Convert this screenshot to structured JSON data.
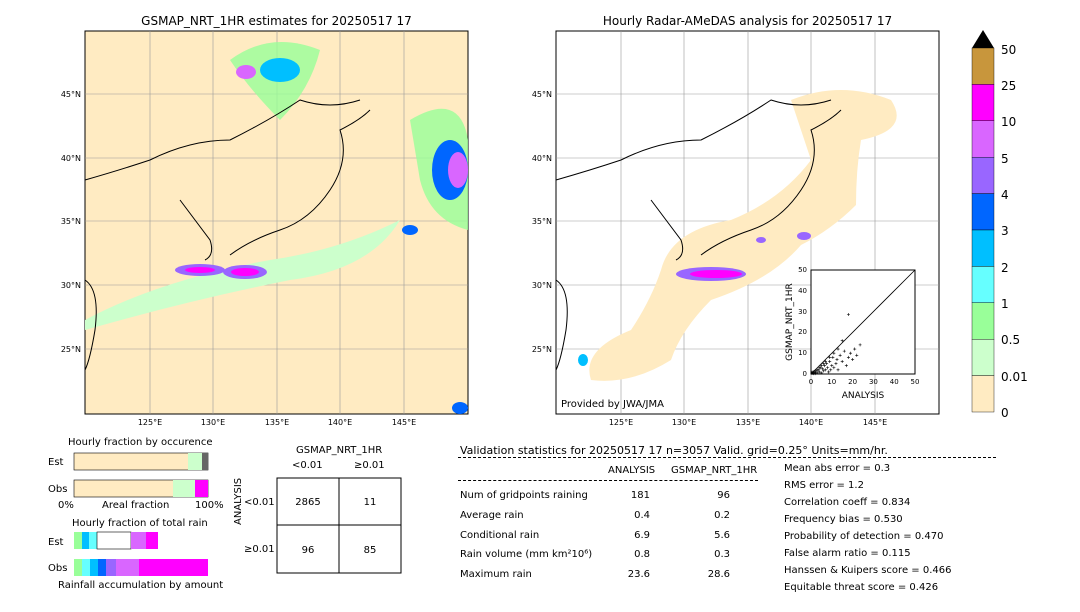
{
  "left_map": {
    "title": "GSMAP_NRT_1HR estimates for 20250517 17",
    "lat_ticks": [
      "45°N",
      "40°N",
      "35°N",
      "30°N",
      "25°N"
    ],
    "lon_ticks": [
      "125°E",
      "130°E",
      "135°E",
      "140°E",
      "145°E"
    ]
  },
  "right_map": {
    "title": "Hourly Radar-AMeDAS analysis for 20250517 17",
    "lat_ticks": [
      "45°N",
      "40°N",
      "35°N",
      "30°N",
      "25°N"
    ],
    "lon_ticks": [
      "125°E",
      "130°E",
      "135°E",
      "140°E",
      "145°E"
    ],
    "credit": "Provided by JWA/JMA"
  },
  "colorbar": {
    "labels": [
      "50",
      "25",
      "10",
      "5",
      "4",
      "3",
      "2",
      "1",
      "0.5",
      "0.01",
      "0"
    ],
    "colors": [
      "#c8963c",
      "#ff00ff",
      "#d966ff",
      "#9966ff",
      "#0066ff",
      "#00bfff",
      "#66ffff",
      "#99ff99",
      "#ccffcc",
      "#ffebc2"
    ]
  },
  "fraction": {
    "occ_title": "Hourly fraction by occurence",
    "est": "Est",
    "obs": "Obs",
    "axis_left": "0%",
    "axis_mid": "Areal fraction",
    "axis_right": "100%",
    "total_title": "Hourly fraction of total rain",
    "accum_label": "Rainfall accumulation by amount"
  },
  "contingency": {
    "title": "GSMAP_NRT_1HR",
    "col_lt": "<0.01",
    "col_ge": "≥0.01",
    "axis": "ANALYSIS",
    "row_lt": "<0.01",
    "row_ge": "≥0.01",
    "a": "2865",
    "b": "11",
    "c": "96",
    "d": "85"
  },
  "stats": {
    "header": "Validation statistics for 20250517 17  n=3057 Valid. grid=0.25° Units=mm/hr.",
    "col_analysis": "ANALYSIS",
    "col_gsmap": "GSMAP_NRT_1HR",
    "rows": [
      {
        "label": "Num of gridpoints raining",
        "analysis": "181",
        "gsmap": "96"
      },
      {
        "label": "Average rain",
        "analysis": "0.4",
        "gsmap": "0.2"
      },
      {
        "label": "Conditional rain",
        "analysis": "6.9",
        "gsmap": "5.6"
      },
      {
        "label": "Rain volume (mm km²10⁶)",
        "analysis": "0.8",
        "gsmap": "0.3"
      },
      {
        "label": "Maximum rain",
        "analysis": "23.6",
        "gsmap": "28.6"
      }
    ],
    "scores": [
      "Mean abs error =    0.3",
      "RMS error =    1.2",
      "Correlation coeff =  0.834",
      "Frequency bias =  0.530",
      "Probability of detection =  0.470",
      "False alarm ratio =  0.115",
      "Hanssen & Kuipers score =  0.466",
      "Equitable threat score =  0.426"
    ]
  },
  "chart_data": {
    "type": "scatter",
    "xlabel": "ANALYSIS",
    "ylabel": "GSMAP_NRT_1HR",
    "xlim": [
      0,
      50
    ],
    "ylim": [
      0,
      50
    ],
    "ticks": [
      "0",
      "10",
      "20",
      "30",
      "40",
      "50"
    ],
    "points": [
      [
        0.5,
        0.3
      ],
      [
        1,
        0.5
      ],
      [
        1.5,
        1
      ],
      [
        2,
        0.2
      ],
      [
        2.5,
        1.5
      ],
      [
        3,
        0.5
      ],
      [
        3.5,
        2
      ],
      [
        4,
        1
      ],
      [
        4.5,
        3
      ],
      [
        5,
        0.5
      ],
      [
        5.5,
        2.5
      ],
      [
        6,
        1.5
      ],
      [
        6.5,
        4
      ],
      [
        7,
        2
      ],
      [
        7.5,
        5
      ],
      [
        8,
        3
      ],
      [
        8.5,
        1
      ],
      [
        9,
        6
      ],
      [
        9.5,
        2
      ],
      [
        10,
        4
      ],
      [
        10.5,
        8
      ],
      [
        11,
        3
      ],
      [
        12,
        5
      ],
      [
        12.5,
        7
      ],
      [
        13,
        2
      ],
      [
        14,
        9
      ],
      [
        15,
        6
      ],
      [
        16,
        11
      ],
      [
        17,
        4
      ],
      [
        18,
        8
      ],
      [
        19,
        10
      ],
      [
        20,
        7
      ],
      [
        21,
        12
      ],
      [
        22,
        9
      ],
      [
        23.6,
        14
      ],
      [
        18,
        28.6
      ],
      [
        15,
        16
      ],
      [
        13,
        12
      ],
      [
        11,
        10
      ],
      [
        9,
        8
      ],
      [
        7,
        6
      ],
      [
        6,
        5
      ],
      [
        5,
        4
      ],
      [
        4,
        3
      ],
      [
        3,
        2
      ],
      [
        2,
        1.5
      ],
      [
        1,
        1
      ],
      [
        0.5,
        0.8
      ],
      [
        1.2,
        0.2
      ],
      [
        2.2,
        0.6
      ]
    ]
  }
}
